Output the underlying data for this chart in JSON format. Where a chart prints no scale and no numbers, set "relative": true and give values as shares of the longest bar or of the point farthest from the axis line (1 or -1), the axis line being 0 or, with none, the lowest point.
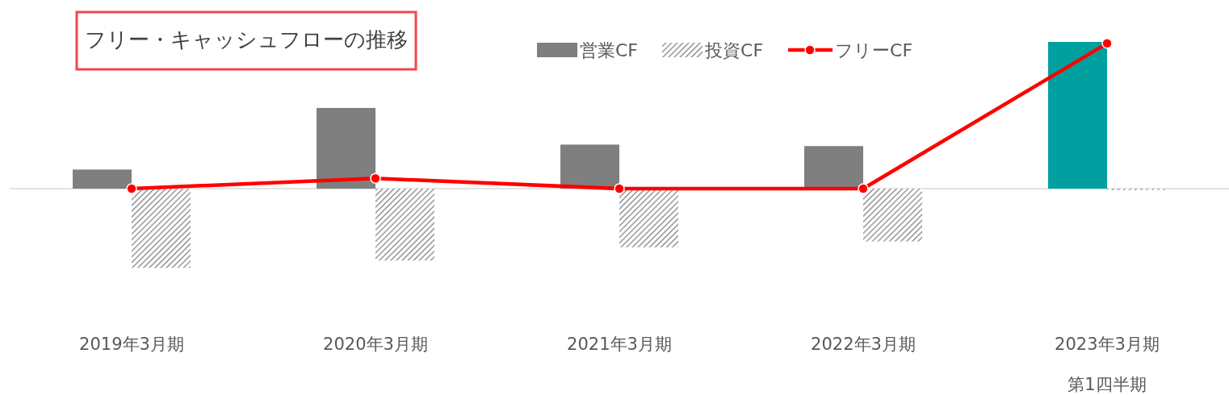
{
  "chart_data": {
    "type": "bar",
    "title": "フリー・キャッシュフローの推移",
    "relative": true,
    "legend": "top",
    "categories": [
      "2019年3月期",
      "2020年3月期",
      "2021年3月期",
      "2022年3月期",
      "2023年3月期第1四半期"
    ],
    "series": [
      {
        "name": "営業CF",
        "type": "bar",
        "color": "#7f7f7f",
        "colors": [
          "#7f7f7f",
          "#7f7f7f",
          "#7f7f7f",
          "#7f7f7f",
          "#00a0a0"
        ],
        "values": [
          0.13,
          0.55,
          0.3,
          0.29,
          1.0
        ]
      },
      {
        "name": "投資CF",
        "type": "bar",
        "color": "#7f7f7f",
        "values": [
          -0.54,
          -0.49,
          -0.4,
          -0.36,
          -0.01
        ]
      },
      {
        "name": "フリーCF",
        "type": "line",
        "color": "#ff0000",
        "marker": "circle",
        "values": [
          0,
          0.07,
          0,
          0,
          0.99
        ]
      }
    ]
  }
}
